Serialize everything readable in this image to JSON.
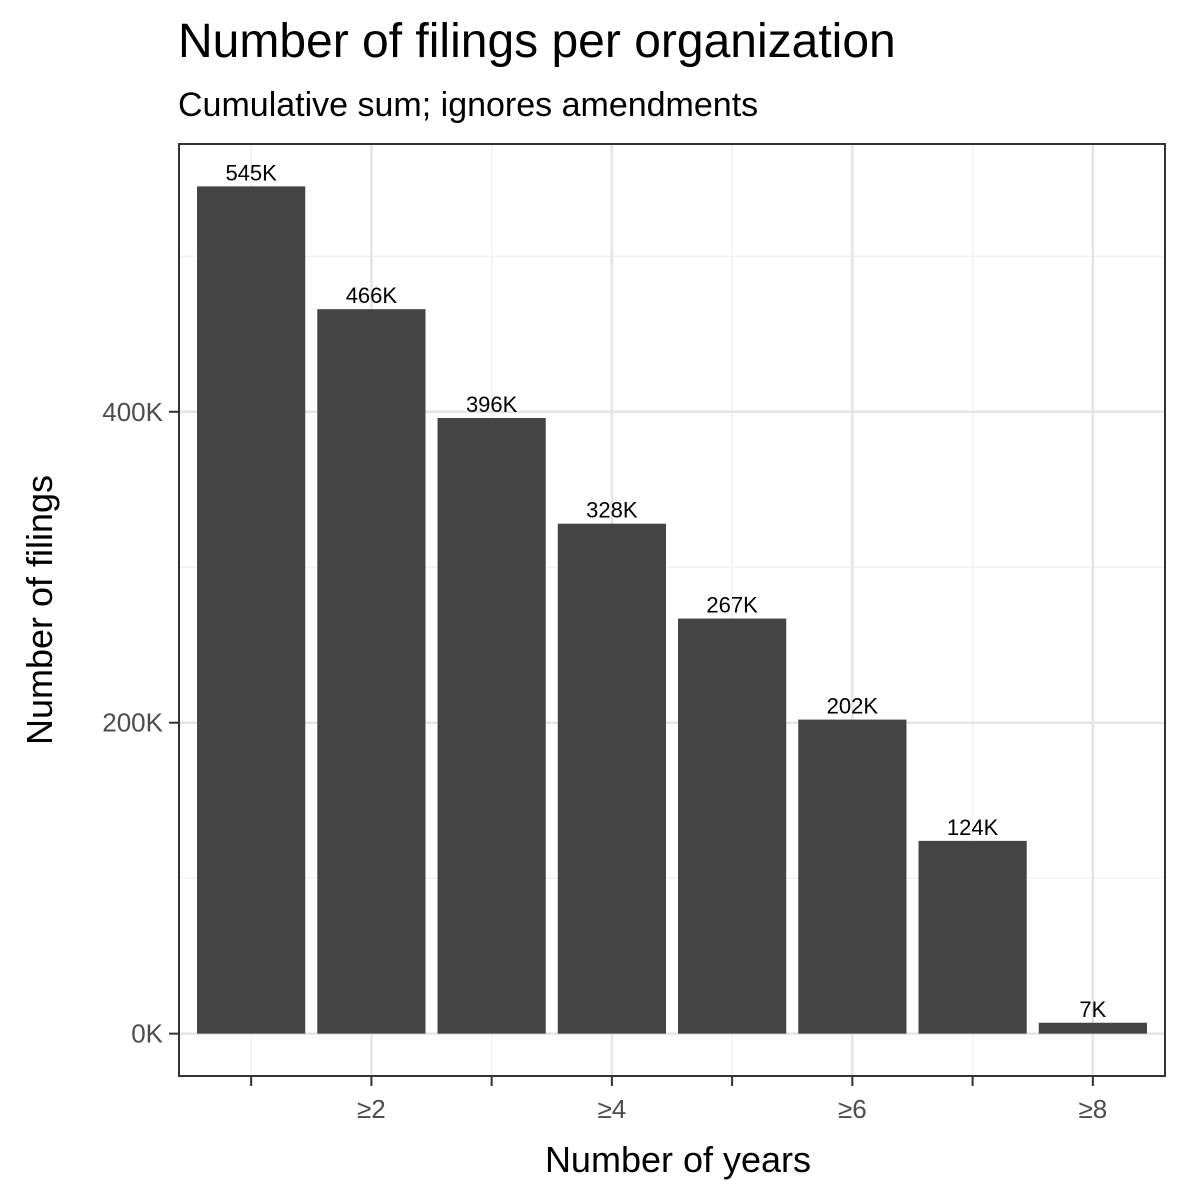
{
  "chart_data": {
    "type": "bar",
    "title": "Number of filings per organization",
    "subtitle": "Cumulative sum; ignores amendments",
    "xlabel": "Number of years",
    "ylabel": "Number of filings",
    "categories": [
      "",
      "≥2",
      "",
      "≥4",
      "",
      "≥6",
      "",
      "≥8"
    ],
    "values": [
      545000,
      466000,
      396000,
      328000,
      267000,
      202000,
      124000,
      7000
    ],
    "data_labels": [
      "545K",
      "466K",
      "396K",
      "328K",
      "267K",
      "202K",
      "124K",
      "7K"
    ],
    "x_tick_labels": [
      "≥2",
      "≥4",
      "≥6",
      "≥8"
    ],
    "y_ticks": [
      0,
      200000,
      400000
    ],
    "y_tick_labels": [
      "0K",
      "200K",
      "400K"
    ],
    "ylim": [
      -27250,
      572250
    ],
    "grid": true,
    "legend": "none",
    "colors": {
      "bar": "#444444",
      "grid_major": "#e5e5e5",
      "grid_minor": "#f2f2f2",
      "panel_border": "#333333"
    }
  }
}
